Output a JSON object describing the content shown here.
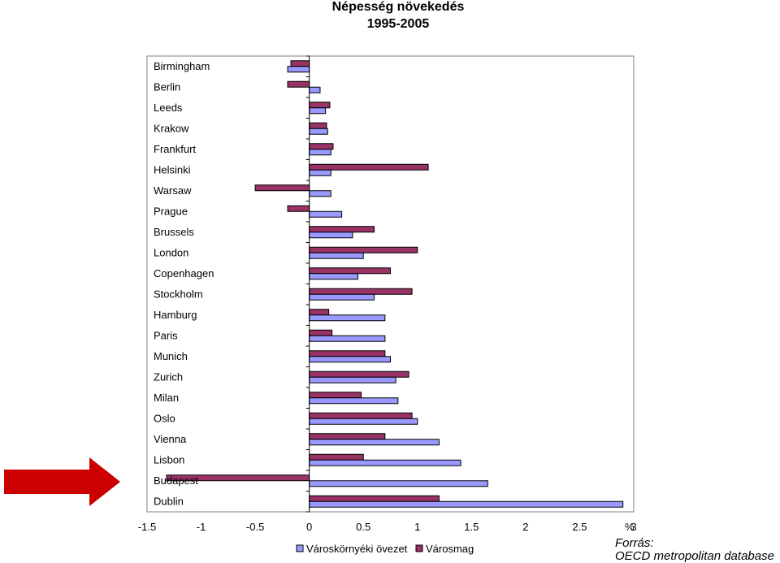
{
  "chart_data": {
    "type": "bar",
    "orientation": "horizontal",
    "title": "Népesség növekedés",
    "subtitle": "1995-2005",
    "xunit": "%",
    "xlim": [
      -1.5,
      3
    ],
    "xticks": [
      "-1.5",
      "-1",
      "-0.5",
      "0",
      "0.5",
      "1",
      "1.5",
      "2",
      "2.5",
      "3"
    ],
    "xtick_values": [
      -1.5,
      -1,
      -0.5,
      0,
      0.5,
      1,
      1.5,
      2,
      2.5,
      3
    ],
    "categories": [
      "Birmingham",
      "Berlin",
      "Leeds",
      "Krakow",
      "Frankfurt",
      "Helsinki",
      "Warsaw",
      "Prague",
      "Brussels",
      "London",
      "Copenhagen",
      "Stockholm",
      "Hamburg",
      "Paris",
      "Munich",
      "Zurich",
      "Milan",
      "Oslo",
      "Vienna",
      "Lisbon",
      "Budapest",
      "Dublin"
    ],
    "series": [
      {
        "name": "Városmag",
        "color": "#993366",
        "values": [
          -0.17,
          -0.2,
          0.19,
          0.16,
          0.22,
          1.1,
          -0.5,
          -0.2,
          0.6,
          1.0,
          0.75,
          0.95,
          0.18,
          0.21,
          0.7,
          0.92,
          0.48,
          0.95,
          0.7,
          0.5,
          -1.32,
          1.2
        ]
      },
      {
        "name": "Városkörnyéki övezet",
        "color": "#9999ff",
        "values": [
          -0.2,
          0.1,
          0.15,
          0.17,
          0.2,
          0.2,
          0.2,
          0.3,
          0.4,
          0.5,
          0.45,
          0.6,
          0.7,
          0.7,
          0.75,
          0.8,
          0.82,
          1.0,
          1.2,
          1.4,
          1.65,
          2.9
        ]
      }
    ],
    "legend_order": [
      "Városkörnyéki övezet",
      "Városmag"
    ],
    "legend_position": "bottom",
    "grid": false,
    "highlight_category": "Budapest",
    "highlight_color": "#cc0000"
  },
  "source": {
    "label": "Forrás:",
    "text": "OECD metropolitan database"
  }
}
